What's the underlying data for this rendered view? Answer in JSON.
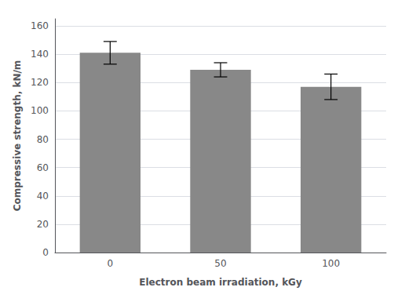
{
  "chart_data": {
    "type": "bar",
    "categories": [
      "0",
      "50",
      "100"
    ],
    "values": [
      141,
      129,
      117
    ],
    "errors": [
      8,
      5,
      9
    ],
    "color": "#888888",
    "xlabel": "Electron beam irradiation, kGy",
    "ylabel": "Compressive strength, kN/m",
    "ylim": [
      0,
      165
    ],
    "yticks": [
      0,
      20,
      40,
      60,
      80,
      100,
      120,
      140,
      160
    ],
    "grid": true
  }
}
